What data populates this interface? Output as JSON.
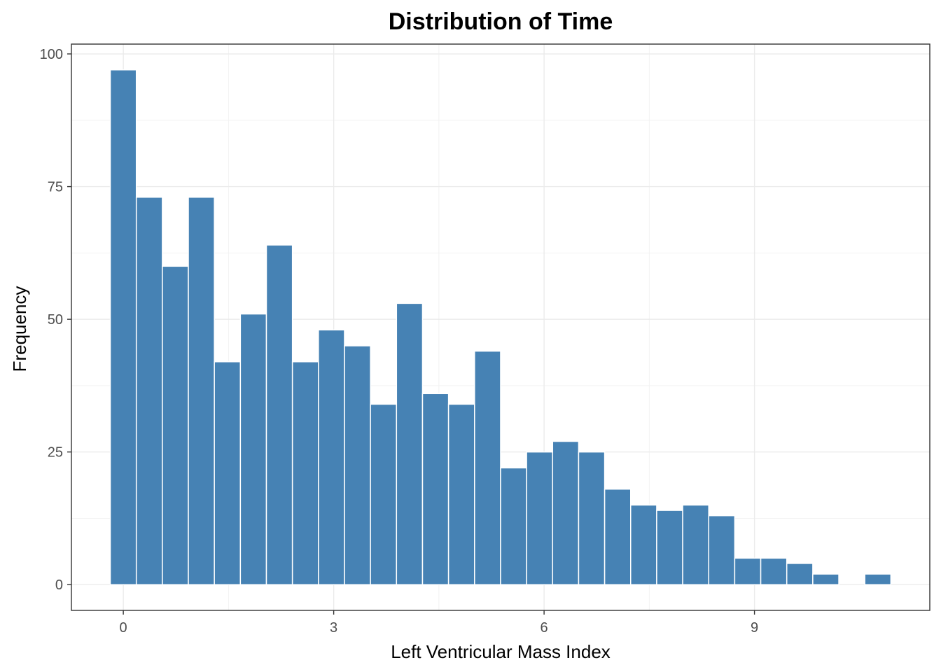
{
  "chart_data": {
    "type": "bar",
    "title": "Distribution of Time",
    "xlabel": "Left Ventricular Mass Index",
    "ylabel": "Frequency",
    "bin_width": 0.371,
    "bins": [
      {
        "x": 0.0,
        "count": 97
      },
      {
        "x": 0.371,
        "count": 73
      },
      {
        "x": 0.742,
        "count": 60
      },
      {
        "x": 1.113,
        "count": 73
      },
      {
        "x": 1.484,
        "count": 42
      },
      {
        "x": 1.855,
        "count": 51
      },
      {
        "x": 2.226,
        "count": 64
      },
      {
        "x": 2.597,
        "count": 42
      },
      {
        "x": 2.968,
        "count": 48
      },
      {
        "x": 3.339,
        "count": 45
      },
      {
        "x": 3.71,
        "count": 34
      },
      {
        "x": 4.081,
        "count": 53
      },
      {
        "x": 4.452,
        "count": 36
      },
      {
        "x": 4.823,
        "count": 34
      },
      {
        "x": 5.194,
        "count": 44
      },
      {
        "x": 5.565,
        "count": 22
      },
      {
        "x": 5.936,
        "count": 25
      },
      {
        "x": 6.307,
        "count": 27
      },
      {
        "x": 6.678,
        "count": 25
      },
      {
        "x": 7.049,
        "count": 18
      },
      {
        "x": 7.42,
        "count": 15
      },
      {
        "x": 7.791,
        "count": 14
      },
      {
        "x": 8.162,
        "count": 15
      },
      {
        "x": 8.533,
        "count": 13
      },
      {
        "x": 8.904,
        "count": 5
      },
      {
        "x": 9.275,
        "count": 5
      },
      {
        "x": 9.646,
        "count": 4
      },
      {
        "x": 10.017,
        "count": 2
      },
      {
        "x": 10.388,
        "count": 0
      },
      {
        "x": 10.759,
        "count": 2
      }
    ],
    "xlim": [
      -0.74,
      11.5
    ],
    "ylim": [
      -4.85,
      101.85
    ],
    "xticks": [
      0,
      3,
      6,
      9
    ],
    "xtick_labels": [
      "0",
      "3",
      "6",
      "9"
    ],
    "yticks": [
      0,
      25,
      50,
      75,
      100
    ],
    "ytick_labels": [
      "0",
      "25",
      "50",
      "75",
      "100"
    ],
    "grid": true,
    "legend": "none",
    "bar_color": "#4682B4",
    "bar_outline": "#ffffff"
  }
}
